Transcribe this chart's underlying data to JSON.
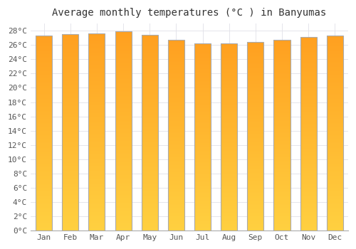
{
  "title": "Average monthly temperatures (°C ) in Banyumas",
  "months": [
    "Jan",
    "Feb",
    "Mar",
    "Apr",
    "May",
    "Jun",
    "Jul",
    "Aug",
    "Sep",
    "Oct",
    "Nov",
    "Dec"
  ],
  "temperatures": [
    27.3,
    27.5,
    27.6,
    27.9,
    27.4,
    26.7,
    26.2,
    26.2,
    26.4,
    26.7,
    27.1,
    27.3
  ],
  "ylim": [
    0,
    29
  ],
  "ytick_step": 2,
  "bar_color_top": "#FFA020",
  "bar_color_bottom": "#FFD040",
  "bar_edge_color": "#AAAAAA",
  "background_color": "#FFFFFF",
  "plot_bg_color": "#FFFFFF",
  "grid_color": "#E0E0E8",
  "title_fontsize": 10,
  "tick_fontsize": 8,
  "title_color": "#333333",
  "tick_color": "#555555"
}
